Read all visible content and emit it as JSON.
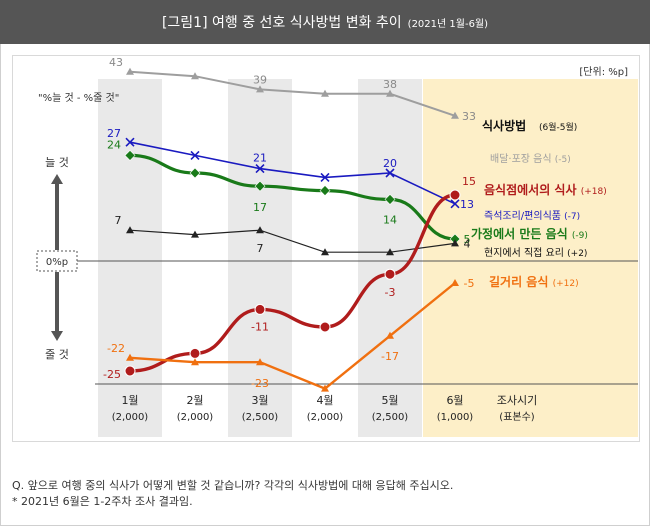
{
  "header": {
    "title": "[그림1] 여행 중 선호 식사방법 변화 추이",
    "period": "(2021년 1월-6월)"
  },
  "unit_label": "[단위: %p]",
  "formula_label": "\"%늘 것 - %줄 것\"",
  "increase_label": "늘 것",
  "decrease_label": "줄 것",
  "zero_label": "0%p",
  "legend_title": "식사방법",
  "legend_title_sub": "(6월-5월)",
  "axis_title": "조사시기",
  "axis_subtitle": "(표본수)",
  "notes": [
    "Q. 앞으로 여행 중의 식사가 어떻게 변할 것 같습니까? 각각의 식사방법에 대해 응답해 주십시오.",
    "* 2021년 6월은 1-2주차 조사 결과임."
  ],
  "colors": {
    "header_bg": "#555555",
    "highlight": "#fdefc8",
    "column_shade": "#e9e9e9",
    "delivery": "#9e9e9e",
    "restaurant": "#b01c1c",
    "convenience": "#1a1ac0",
    "home": "#197a19",
    "local": "#222222",
    "street": "#f07010"
  },
  "chart_data": {
    "type": "line",
    "title": "[그림1] 여행 중 선호 식사방법 변화 추이",
    "categories": [
      "1월",
      "2월",
      "3월",
      "4월",
      "5월",
      "6월"
    ],
    "sample_sizes": [
      "(2,000)",
      "(2,000)",
      "(2,500)",
      "(2,000)",
      "(2,500)",
      "(1,000)"
    ],
    "ylabel": "\"%늘 것 - %줄 것\"",
    "ylim": [
      -30,
      50
    ],
    "grid": false,
    "series": [
      {
        "key": "delivery",
        "name": "배달·포장 음식",
        "change": "(-5)",
        "values": [
          43,
          42,
          39,
          38,
          38,
          33
        ],
        "labels": [
          "43",
          "",
          "39",
          "",
          "38",
          "33"
        ],
        "marker": "triangle",
        "color": "#9e9e9e"
      },
      {
        "key": "convenience",
        "name": "즉석조리/편의식품",
        "change": "(-7)",
        "values": [
          27,
          24,
          21,
          19,
          20,
          13
        ],
        "labels": [
          "27",
          "",
          "21",
          "",
          "20",
          "13"
        ],
        "marker": "x",
        "color": "#1a1ac0"
      },
      {
        "key": "home",
        "name": "가정에서 만든 음식",
        "change": "(-9)",
        "values": [
          24,
          20,
          17,
          16,
          14,
          5
        ],
        "labels": [
          "24",
          "",
          "17",
          "",
          "14",
          "5"
        ],
        "marker": "diamond",
        "color": "#197a19"
      },
      {
        "key": "local",
        "name": "현지에서 직접 요리",
        "change": "(+2)",
        "values": [
          7,
          6,
          7,
          2,
          2,
          4
        ],
        "labels": [
          "7",
          "",
          "7",
          "",
          "",
          "4"
        ],
        "marker": "triangle",
        "color": "#222222"
      },
      {
        "key": "restaurant",
        "name": "음식점에서의 식사",
        "change": "(+18)",
        "values": [
          -25,
          -21,
          -11,
          -15,
          -3,
          15
        ],
        "labels": [
          "-25",
          "",
          "-11",
          "",
          "-3",
          "15"
        ],
        "marker": "circle",
        "color": "#b01c1c"
      },
      {
        "key": "street",
        "name": "길거리 음식",
        "change": "(+12)",
        "values": [
          -22,
          -23,
          -23,
          -29,
          -17,
          -5
        ],
        "labels": [
          "-22",
          "",
          "-23",
          "",
          "-17",
          "-5"
        ],
        "marker": "triangle",
        "color": "#f07010"
      }
    ]
  }
}
